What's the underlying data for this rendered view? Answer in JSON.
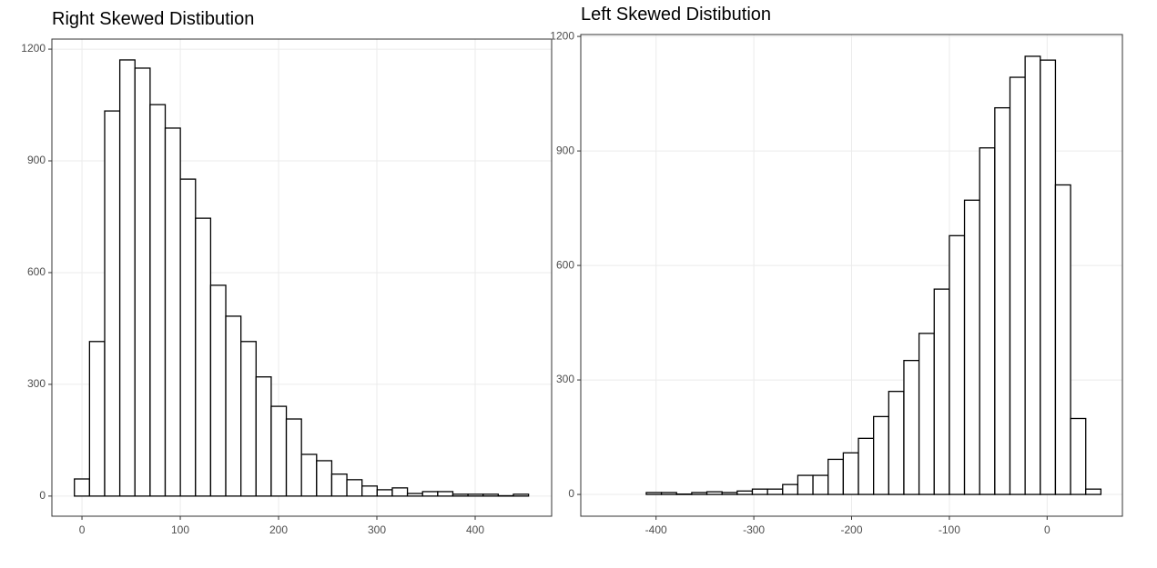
{
  "chart_data": [
    {
      "type": "histogram",
      "title": "Right Skewed Distibution",
      "bins": [
        -7.7,
        7.7,
        23.1,
        38.5,
        53.9,
        69.3,
        84.7,
        100.1,
        115.5,
        130.9,
        146.3,
        161.7,
        177.1,
        192.5,
        207.9,
        223.3,
        238.7,
        254.1,
        269.5,
        284.9,
        300.3,
        315.7,
        331.1,
        346.5,
        361.9,
        377.3,
        392.7,
        408.1,
        423.5,
        438.9,
        454.3
      ],
      "counts": [
        46,
        415,
        1034,
        1171,
        1149,
        1051,
        988,
        851,
        746,
        566,
        483,
        415,
        320,
        241,
        207,
        112,
        95,
        59,
        44,
        27,
        17,
        22,
        7,
        12,
        12,
        5,
        5,
        5,
        1,
        5
      ],
      "xlim": [
        -30.6,
        477.8
      ],
      "xticks": [
        0,
        100,
        200,
        300,
        400
      ],
      "ylim": [
        -54,
        1227
      ],
      "yticks": [
        0,
        300,
        600,
        900,
        1200
      ],
      "color": "#ffffff",
      "edgecolor": "#000000",
      "grid": true
    },
    {
      "type": "histogram",
      "title": "Left Skewed Distibution",
      "bins": [
        -410,
        -394.5,
        -379,
        -363.5,
        -348,
        -332.5,
        -317,
        -301.5,
        -286,
        -270.5,
        -255,
        -239.5,
        -224,
        -208.5,
        -193,
        -177.5,
        -162,
        -146.5,
        -131,
        -115.5,
        -100,
        -84.5,
        -69,
        -53.5,
        -38,
        -22.5,
        -7,
        8.5,
        24,
        39.5,
        55
      ],
      "counts": [
        5,
        5,
        1,
        5,
        7,
        5,
        9,
        14,
        14,
        26,
        50,
        50,
        92,
        109,
        147,
        204,
        270,
        351,
        422,
        538,
        678,
        771,
        908,
        1013,
        1093,
        1148,
        1138,
        811,
        199,
        14
      ],
      "xlim": [
        -477,
        77
      ],
      "xticks": [
        -400,
        -300,
        -200,
        -100,
        0
      ],
      "ylim": [
        -57,
        1205
      ],
      "yticks": [
        0,
        300,
        600,
        900,
        1200
      ],
      "color": "#ffffff",
      "edgecolor": "#000000",
      "grid": true
    }
  ]
}
